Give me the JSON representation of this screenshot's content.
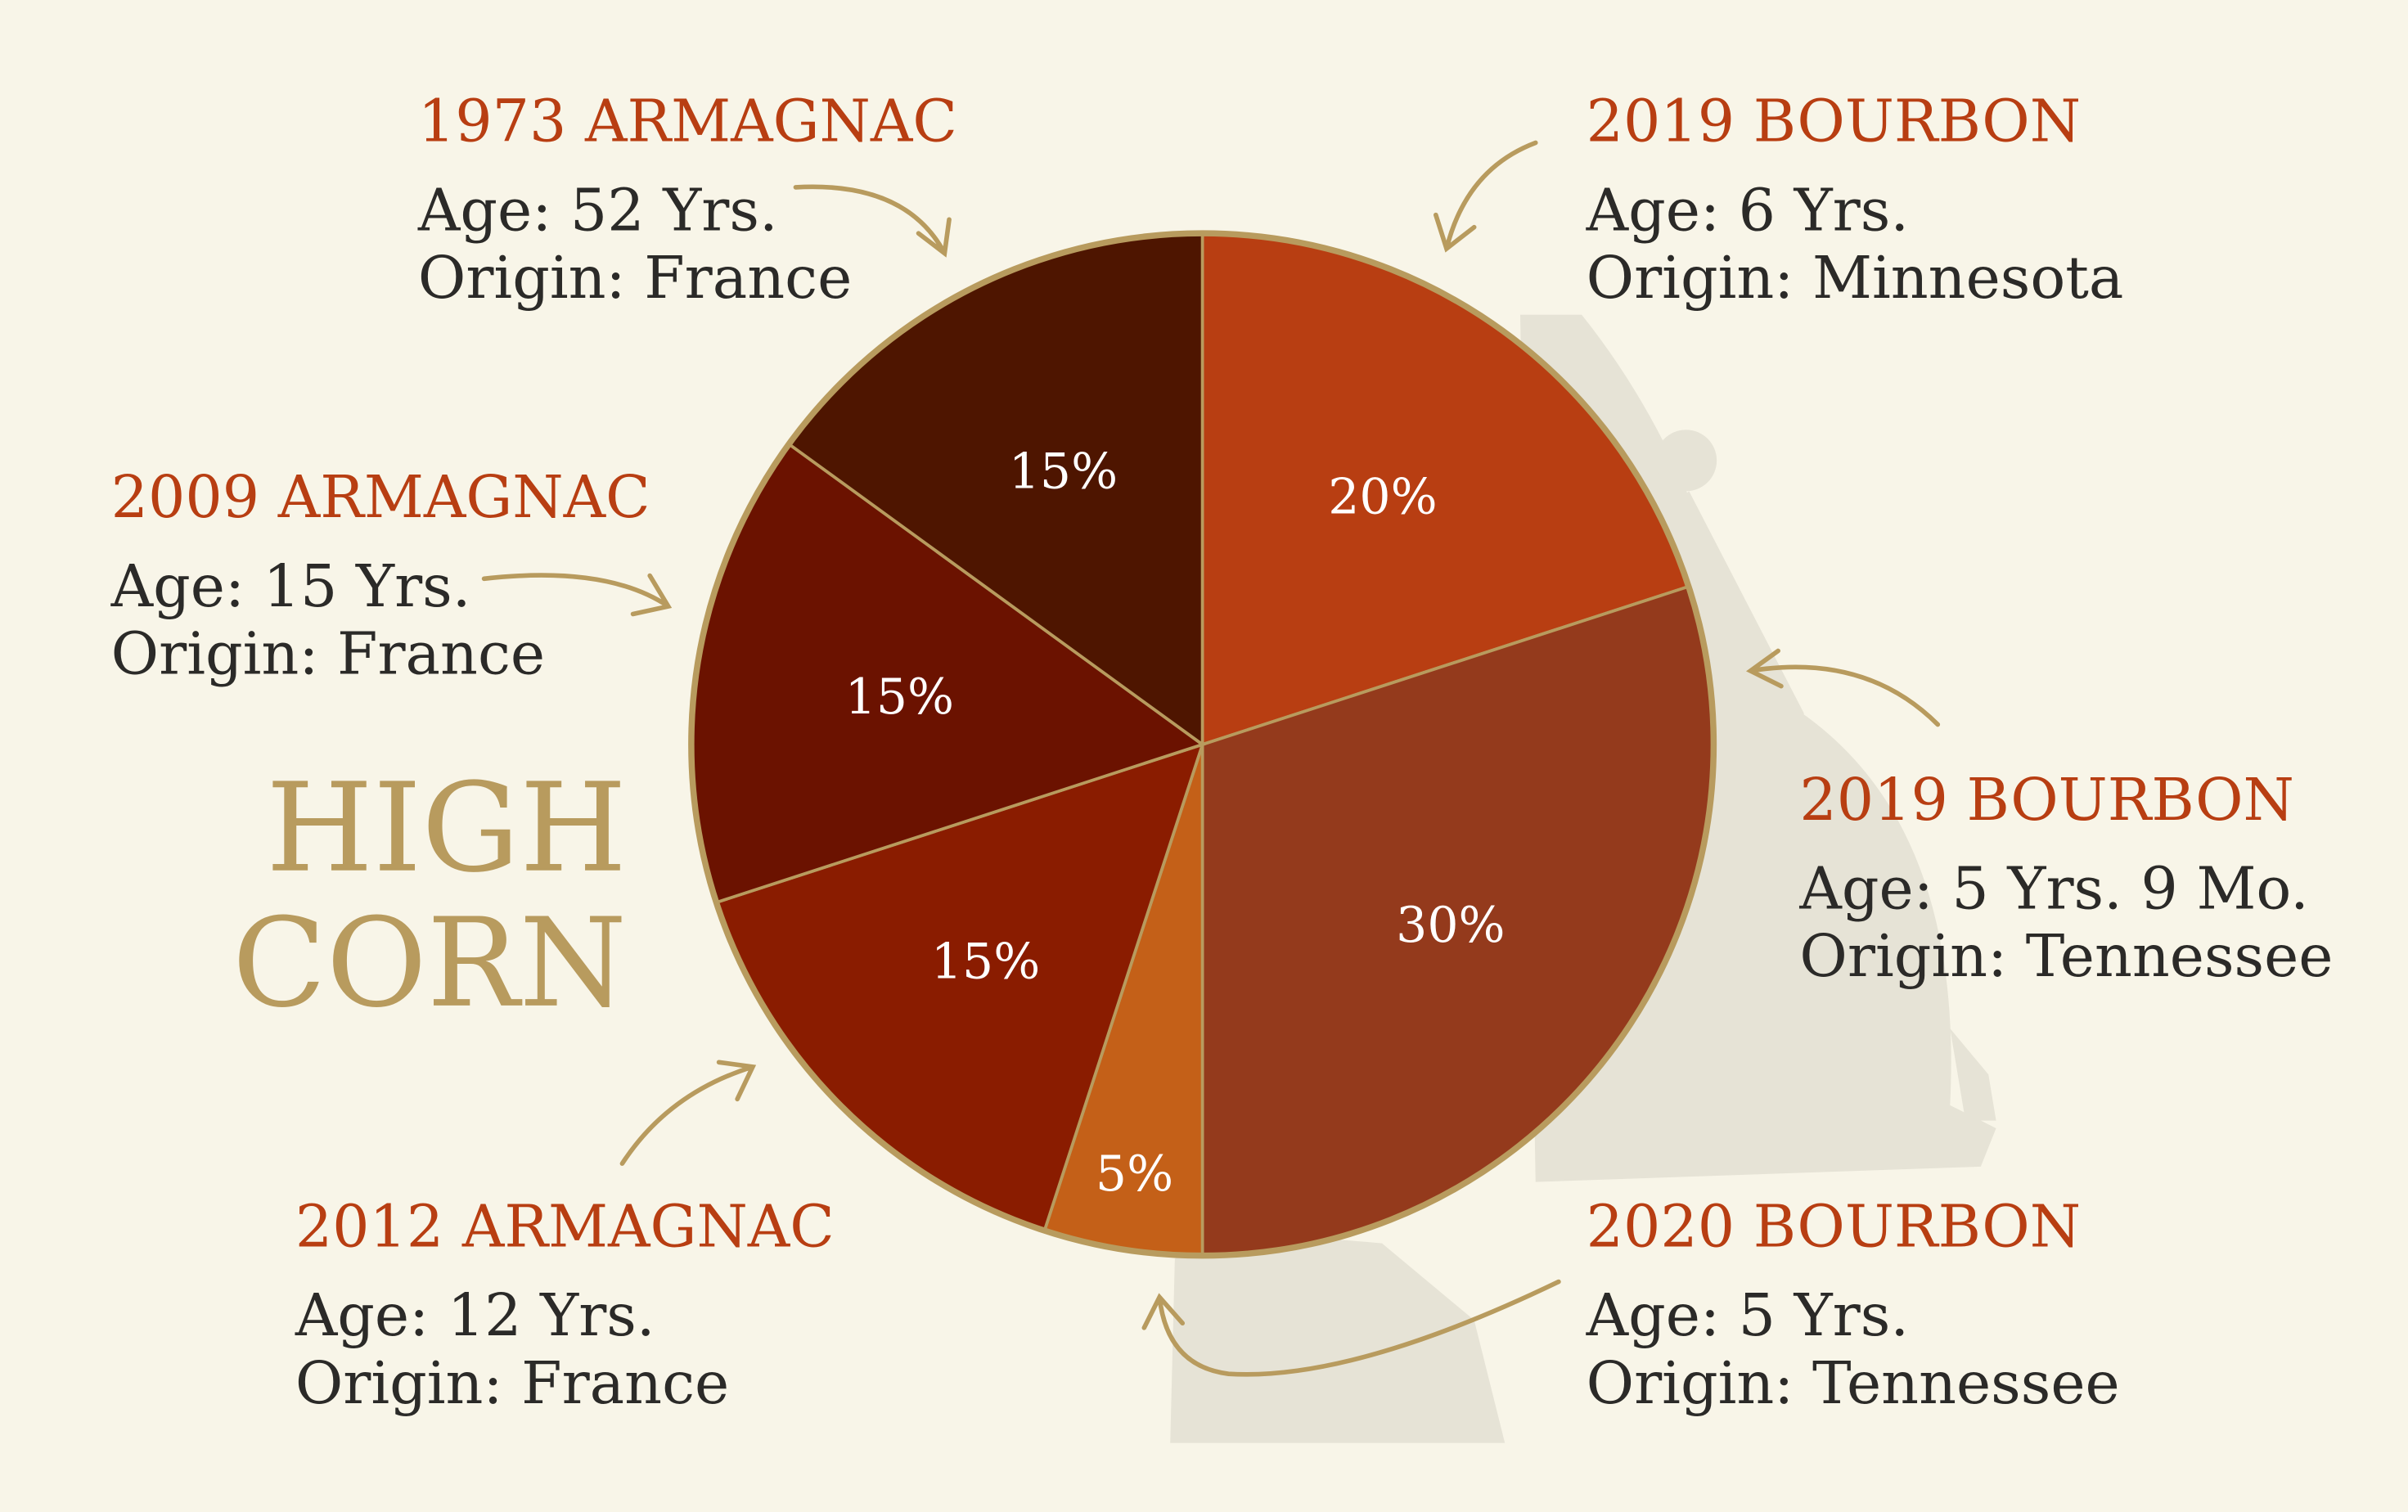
{
  "chart_data": {
    "type": "pie",
    "title": "HIGH CORN",
    "title_lines": [
      "HIGH",
      "CORN"
    ],
    "slices": [
      {
        "value": 20,
        "label": "20%",
        "name": "2019 BOURBON",
        "age": "Age: 6 Yrs.",
        "origin": "Origin: Minnesota",
        "color": "#B83E12"
      },
      {
        "value": 30,
        "label": "30%",
        "name": "2019 BOURBON",
        "age": "Age: 5 Yrs. 9 Mo.",
        "origin": "Origin: Tennessee",
        "color": "#943A1C"
      },
      {
        "value": 5,
        "label": "5%",
        "name": "2020 BOURBON",
        "age": "Age: 5 Yrs.",
        "origin": "Origin: Tennessee",
        "color": "#C46018"
      },
      {
        "value": 15,
        "label": "15%",
        "name": "2012 ARMAGNAC",
        "age": "Age: 12 Yrs.",
        "origin": "Origin: France",
        "color": "#8A1C00"
      },
      {
        "value": 15,
        "label": "15%",
        "name": "2009 ARMAGNAC",
        "age": "Age: 15 Yrs.",
        "origin": "Origin: France",
        "color": "#6B1200"
      },
      {
        "value": 15,
        "label": "15%",
        "name": "1973 ARMAGNAC",
        "age": "Age: 52 Yrs.",
        "origin": "Origin: France",
        "color": "#4E1500"
      }
    ],
    "start": "12 o'clock",
    "direction": "clockwise",
    "border_color": "#B89B5E",
    "background": "#F8F5E8"
  }
}
